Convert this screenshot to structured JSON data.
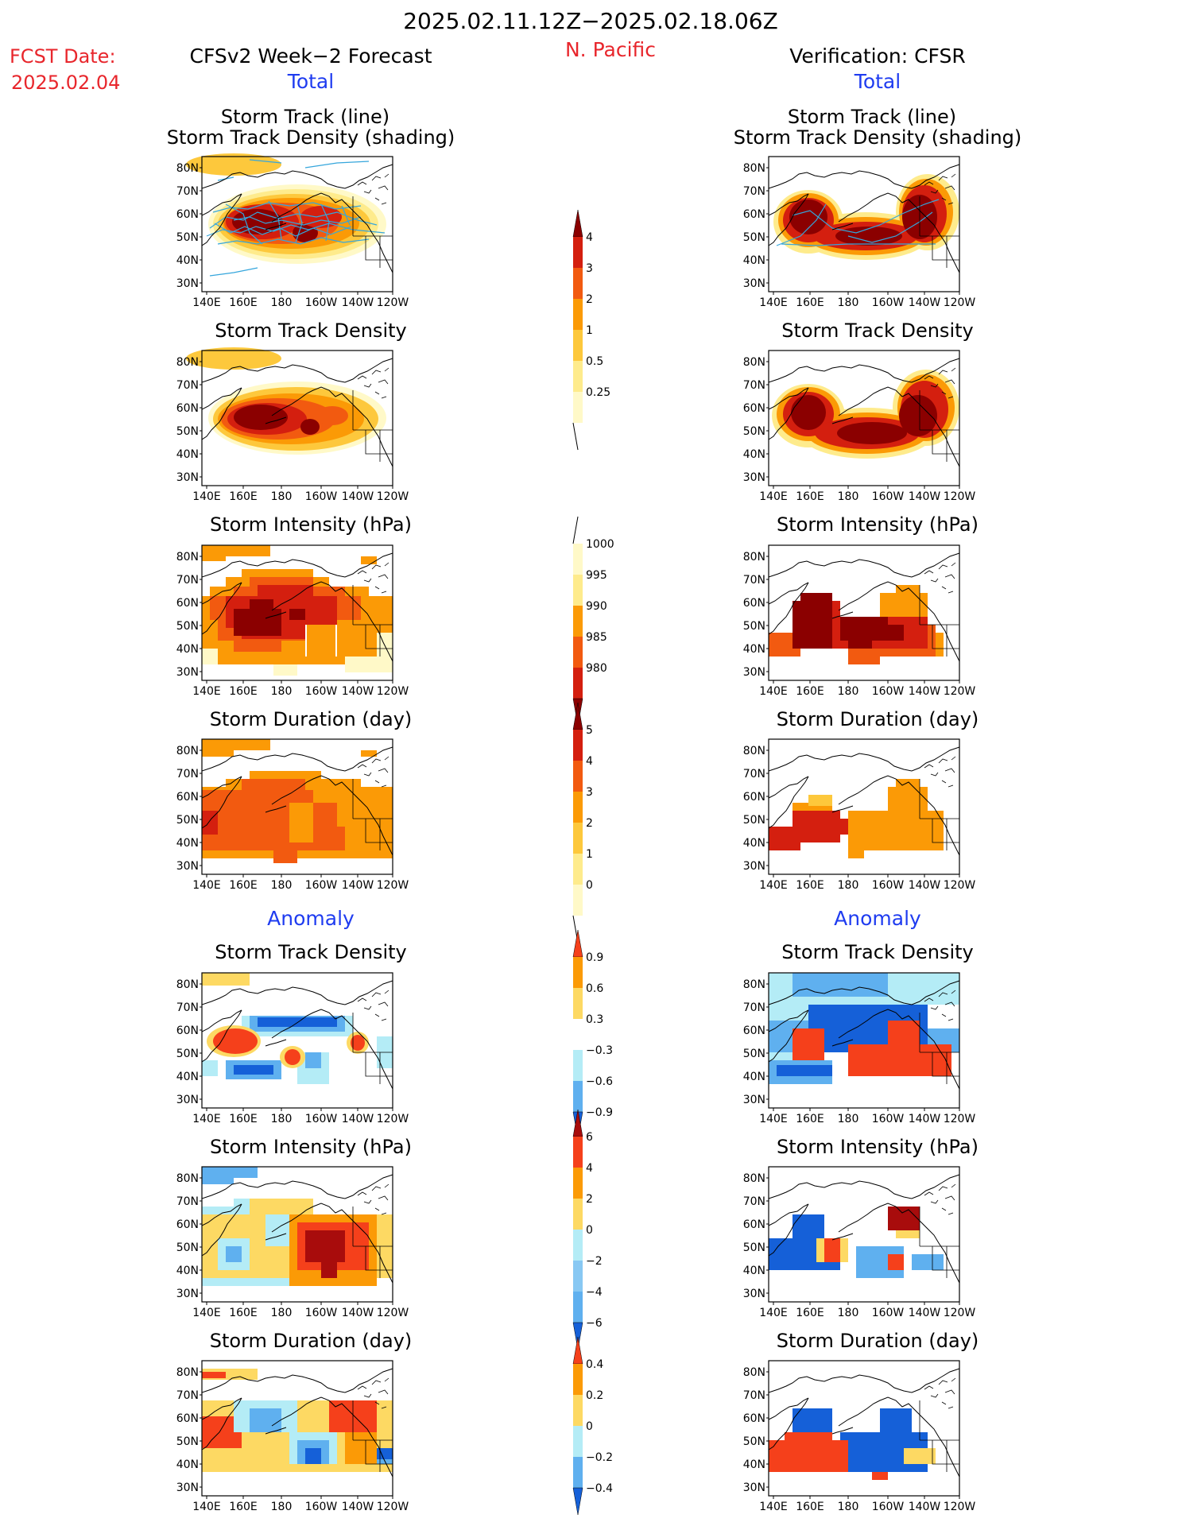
{
  "header": {
    "date_range": "2025.02.11.12Z−2025.02.18.06Z",
    "region": "N. Pacific",
    "fcst_label": "FCST Date:",
    "fcst_date": "2025.02.04",
    "left_title": "CFSv2 Week−2 Forecast",
    "right_title": "Verification: CFSR",
    "total_label": "Total",
    "anomaly_label": "Anomaly"
  },
  "axes": {
    "lat_labels": [
      "80N",
      "70N",
      "60N",
      "50N",
      "40N",
      "30N"
    ],
    "lon_labels": [
      "140E",
      "160E",
      "180",
      "160W",
      "140W",
      "120W"
    ]
  },
  "panels": {
    "track": {
      "title1": "Storm Track (line)",
      "title2": "Storm Track Density (shading)"
    },
    "density": {
      "title": "Storm Track Density"
    },
    "intensity": {
      "title": "Storm Intensity (hPa)"
    },
    "duration": {
      "title": "Storm Duration (day)"
    }
  },
  "colorbars": {
    "density_total": {
      "labels": [
        "4",
        "3",
        "2",
        "1",
        "0.5",
        "0.25"
      ],
      "colors": [
        "#8b0000",
        "#d41f0f",
        "#f25a10",
        "#fb9a06",
        "#fdc83c",
        "#feeb8c",
        "#fff9c8"
      ]
    },
    "intensity_total": {
      "labels": [
        "1000",
        "995",
        "990",
        "985",
        "980"
      ],
      "colors": [
        "#fff9c8",
        "#feeb8c",
        "#fb9a06",
        "#f25a10",
        "#d41f0f",
        "#8b0000"
      ]
    },
    "duration_total": {
      "labels": [
        "5",
        "4",
        "3",
        "2",
        "1",
        "0"
      ],
      "colors": [
        "#8b0000",
        "#d41f0f",
        "#f25a10",
        "#fb9a06",
        "#fdc83c",
        "#feeb8c",
        "#fff9c8"
      ]
    },
    "density_anom": {
      "labels": [
        "0.9",
        "0.6",
        "0.3",
        "−0.3",
        "−0.6",
        "−0.9"
      ],
      "colors": [
        "#f5401b",
        "#fb9a06",
        "#fdd963",
        "#ffffff",
        "#b4ecf6",
        "#5fb0ef",
        "#1560d8"
      ]
    },
    "intensity_anom": {
      "labels": [
        "6",
        "4",
        "2",
        "0",
        "−2",
        "−4",
        "−6"
      ],
      "colors": [
        "#a80c0c",
        "#f5401b",
        "#fb9a06",
        "#fdd963",
        "#b4ecf6",
        "#88c8f3",
        "#5fb0ef",
        "#1560d8"
      ]
    },
    "duration_anom": {
      "labels": [
        "0.4",
        "0.2",
        "0",
        "−0.2",
        "−0.4"
      ],
      "colors": [
        "#f5401b",
        "#fb9a06",
        "#fdd963",
        "#b4ecf6",
        "#5fb0ef",
        "#1560d8"
      ]
    }
  }
}
